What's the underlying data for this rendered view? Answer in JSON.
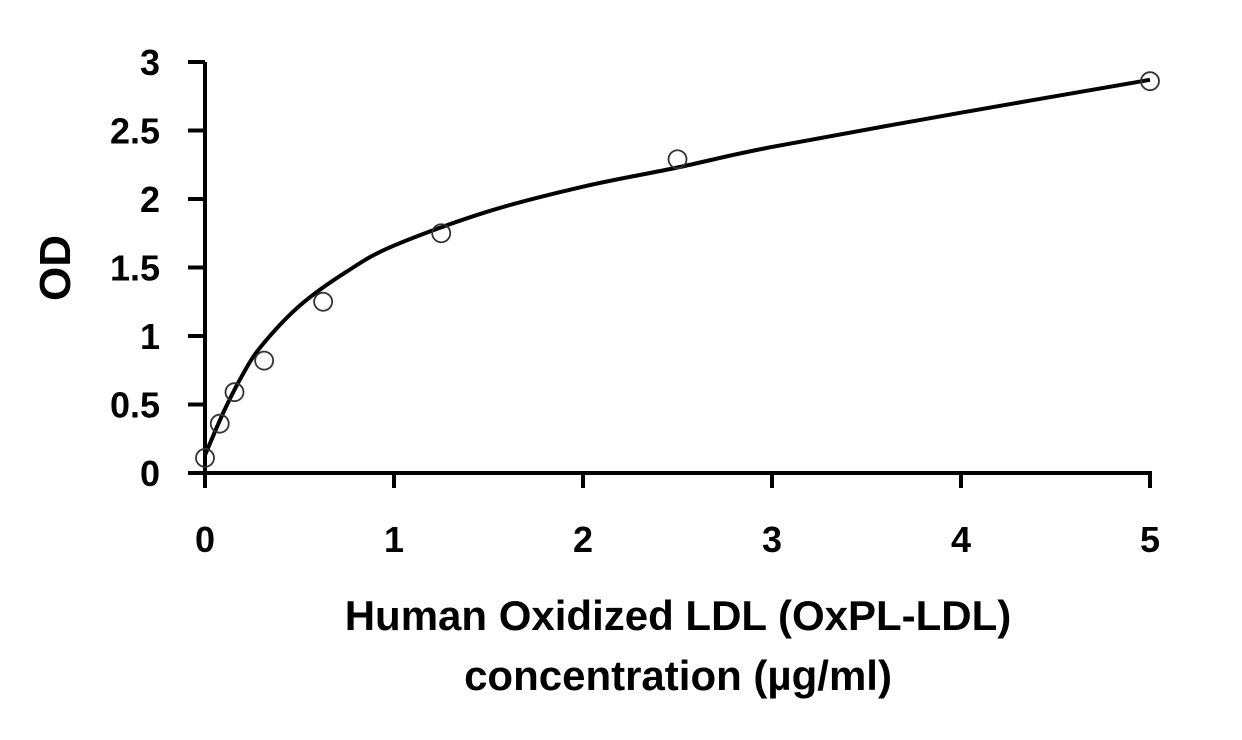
{
  "chart_data": {
    "type": "scatter",
    "title": "",
    "xlabel_lines": [
      "Human Oxidized LDL (OxPL-LDL)",
      "concentration (µg/ml)"
    ],
    "ylabel": "OD",
    "xlim": [
      0,
      5
    ],
    "ylim": [
      0,
      3
    ],
    "xticks": [
      "0",
      "1",
      "2",
      "3",
      "4",
      "5"
    ],
    "yticks": [
      "0",
      "0.5",
      "1",
      "1.5",
      "2",
      "2.5",
      "3"
    ],
    "grid": false,
    "legend": "none",
    "series": [
      {
        "kind": "points",
        "marker": "open-circle",
        "x": [
          0,
          0.078,
          0.156,
          0.313,
          0.625,
          1.25,
          2.5,
          5
        ],
        "y": [
          0.11,
          0.36,
          0.59,
          0.82,
          1.25,
          1.75,
          2.29,
          2.86
        ]
      },
      {
        "kind": "fit-curve",
        "x": [
          0,
          0.1,
          0.2,
          0.3,
          0.5,
          0.75,
          1,
          1.5,
          2,
          2.5,
          3,
          4,
          5
        ],
        "y": [
          0.13,
          0.45,
          0.72,
          0.93,
          1.22,
          1.47,
          1.66,
          1.91,
          2.09,
          2.23,
          2.38,
          2.63,
          2.87
        ]
      }
    ]
  }
}
